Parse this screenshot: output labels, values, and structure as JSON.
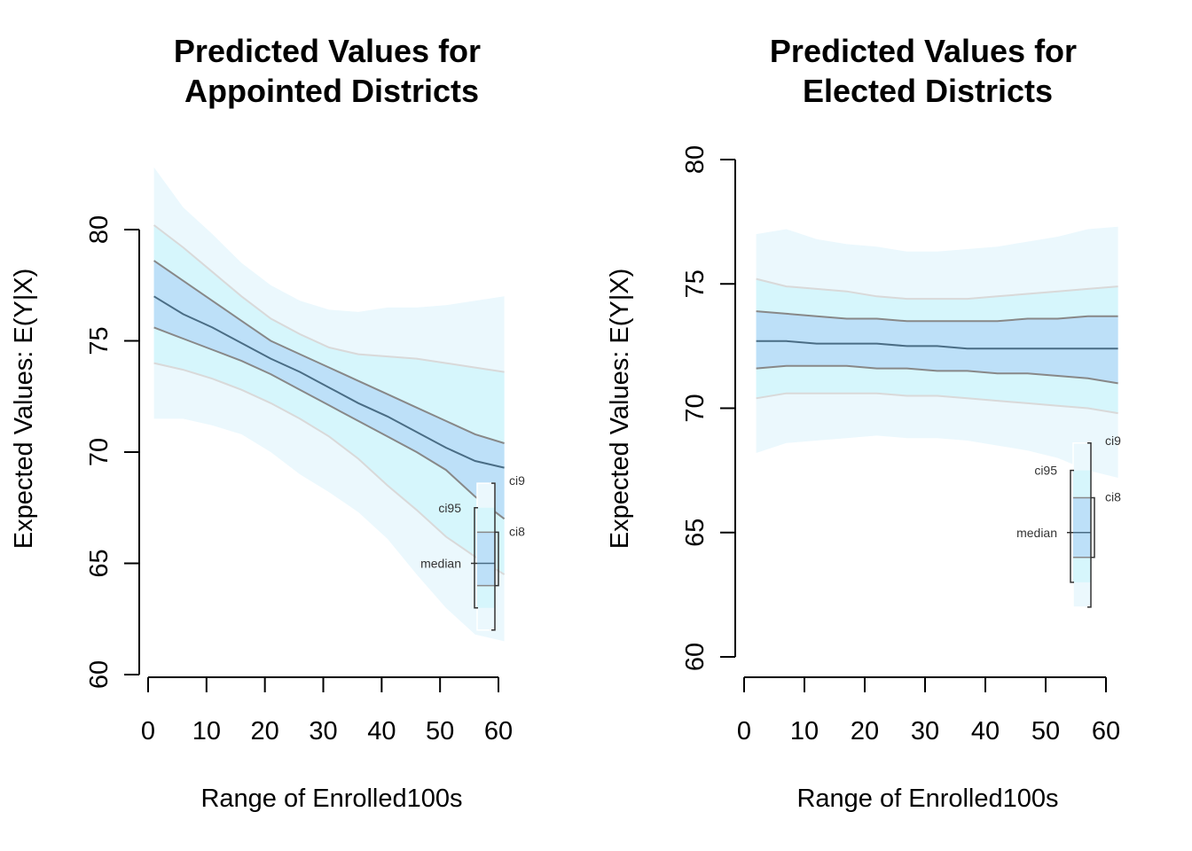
{
  "chart_data": [
    {
      "type": "area",
      "title_line1": "Predicted Values for",
      "title_line2": "Appointed Districts",
      "xlabel": "Range of Enrolled100s",
      "ylabel": "Expected Values: E(Y|X)",
      "xlim": [
        0,
        62
      ],
      "ylim": [
        60,
        80
      ],
      "xticks": [
        0,
        10,
        20,
        30,
        40,
        50,
        60
      ],
      "yticks": [
        60,
        65,
        70,
        75,
        80
      ],
      "x": [
        1,
        6,
        11,
        16,
        21,
        26,
        31,
        36,
        41,
        46,
        51,
        56,
        61
      ],
      "median": [
        77.0,
        76.2,
        75.6,
        74.9,
        74.2,
        73.6,
        72.9,
        72.2,
        71.6,
        70.9,
        70.2,
        69.6,
        69.3
      ],
      "ci80_lower": [
        75.6,
        75.1,
        74.6,
        74.1,
        73.5,
        72.8,
        72.1,
        71.4,
        70.7,
        70.0,
        69.2,
        68.0,
        67.0
      ],
      "ci80_upper": [
        78.6,
        77.7,
        76.8,
        75.9,
        75.0,
        74.4,
        73.8,
        73.2,
        72.6,
        72.0,
        71.4,
        70.8,
        70.4
      ],
      "ci95_lower": [
        74.0,
        73.7,
        73.3,
        72.8,
        72.2,
        71.5,
        70.7,
        69.7,
        68.5,
        67.4,
        66.2,
        65.3,
        64.5
      ],
      "ci95_upper": [
        80.2,
        79.2,
        78.1,
        77.0,
        76.0,
        75.3,
        74.7,
        74.4,
        74.3,
        74.2,
        74.0,
        73.8,
        73.6
      ],
      "ci99_lower": [
        71.5,
        71.5,
        71.2,
        70.8,
        70.0,
        69.0,
        68.2,
        67.3,
        66.1,
        64.5,
        63.0,
        61.8,
        61.5
      ],
      "ci99_upper": [
        82.8,
        81.0,
        79.8,
        78.5,
        77.5,
        76.8,
        76.4,
        76.3,
        76.5,
        76.5,
        76.6,
        76.8,
        77.0
      ],
      "legend": {
        "median_label": "median",
        "ci95_label": "ci95",
        "ci99_label": "ci9",
        "ci80_label": "ci8",
        "position": "bottom-right"
      }
    },
    {
      "type": "area",
      "title_line1": "Predicted Values for",
      "title_line2": "Elected Districts",
      "xlabel": "Range of Enrolled100s",
      "ylabel": "Expected Values: E(Y|X)",
      "xlim": [
        0,
        62
      ],
      "ylim": [
        60,
        80
      ],
      "xticks": [
        0,
        10,
        20,
        30,
        40,
        50,
        60
      ],
      "yticks": [
        60,
        65,
        70,
        75,
        80
      ],
      "x": [
        2,
        7,
        12,
        17,
        22,
        27,
        32,
        37,
        42,
        47,
        52,
        57,
        62
      ],
      "median": [
        72.7,
        72.7,
        72.6,
        72.6,
        72.6,
        72.5,
        72.5,
        72.4,
        72.4,
        72.4,
        72.4,
        72.4,
        72.4
      ],
      "ci80_lower": [
        71.6,
        71.7,
        71.7,
        71.7,
        71.6,
        71.6,
        71.5,
        71.5,
        71.4,
        71.4,
        71.3,
        71.2,
        71.0
      ],
      "ci80_upper": [
        73.9,
        73.8,
        73.7,
        73.6,
        73.6,
        73.5,
        73.5,
        73.5,
        73.5,
        73.6,
        73.6,
        73.7,
        73.7
      ],
      "ci95_lower": [
        70.4,
        70.6,
        70.6,
        70.6,
        70.6,
        70.5,
        70.5,
        70.4,
        70.3,
        70.2,
        70.1,
        70.0,
        69.8
      ],
      "ci95_upper": [
        75.2,
        74.9,
        74.8,
        74.7,
        74.5,
        74.4,
        74.4,
        74.4,
        74.5,
        74.6,
        74.7,
        74.8,
        74.9
      ],
      "ci99_lower": [
        68.2,
        68.6,
        68.7,
        68.8,
        68.9,
        68.8,
        68.8,
        68.7,
        68.5,
        68.3,
        68.0,
        67.5,
        67.2
      ],
      "ci99_upper": [
        77.0,
        77.2,
        76.8,
        76.6,
        76.5,
        76.3,
        76.3,
        76.4,
        76.5,
        76.7,
        76.9,
        77.2,
        77.3
      ],
      "legend": {
        "median_label": "median",
        "ci95_label": "ci95",
        "ci99_label": "ci9",
        "ci80_label": "ci8",
        "position": "bottom-right"
      }
    }
  ],
  "colors": {
    "ci99": "#ebf8fd",
    "ci95": "#d6f6fc",
    "ci80": "#bde0f8",
    "ci95_line": "#d9d9d9",
    "ci80_line": "#888888",
    "median_line": "#4a6d85",
    "axis": "#000000"
  }
}
